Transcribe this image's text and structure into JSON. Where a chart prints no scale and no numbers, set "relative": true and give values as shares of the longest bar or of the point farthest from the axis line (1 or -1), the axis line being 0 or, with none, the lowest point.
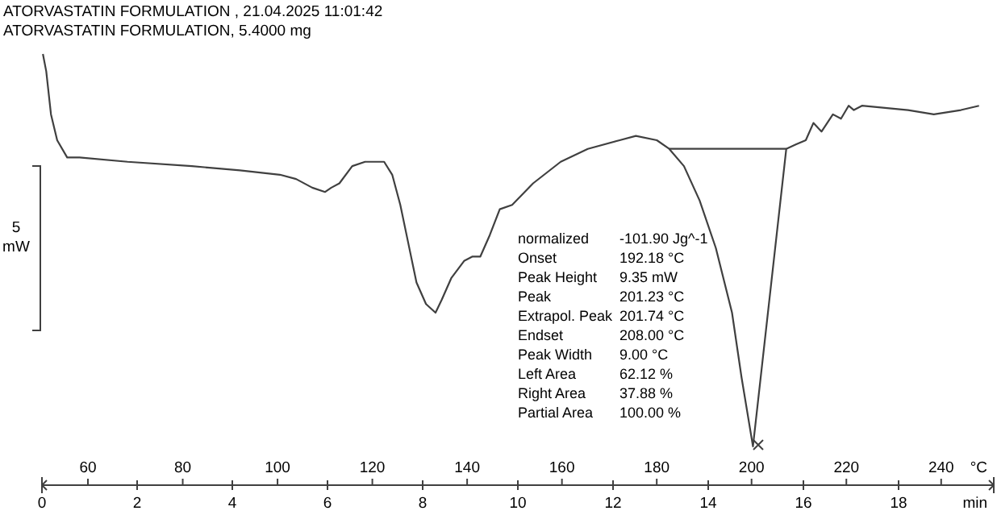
{
  "chart_data": {
    "type": "line",
    "title": "ATORVASTATIN FORMULATION , 21.04.2025 11:01:42",
    "subtitle": "ATORVASTATIN FORMULATION, 5.4000 mg",
    "ylabel": "5 mW",
    "xlabel": "min",
    "x2label": "°C",
    "relative": true,
    "grid": false,
    "marker": "none",
    "line_style": "solid",
    "xlim": [
      0,
      20
    ],
    "xticks": [
      0,
      2,
      4,
      6,
      8,
      10,
      12,
      14,
      16,
      18
    ],
    "x2lim": [
      50.3,
      251.1
    ],
    "x2ticks": [
      60,
      80,
      100,
      120,
      140,
      160,
      180,
      200,
      220,
      240
    ],
    "series": [
      {
        "color": "#404040",
        "x": [
          0.02,
          0.09,
          0.19,
          0.32,
          0.53,
          0.79,
          1.8,
          3.15,
          4.16,
          5.0,
          5.34,
          5.68,
          5.95,
          6.08,
          6.25,
          6.52,
          6.79,
          7.02,
          7.19,
          7.36,
          7.53,
          7.7,
          7.87,
          8.07,
          8.27,
          8.4,
          8.6,
          8.87,
          9.04,
          9.21,
          9.41,
          9.62,
          9.88,
          10.32,
          10.9,
          11.47,
          12.14,
          12.48,
          12.92,
          13.18,
          13.49,
          13.82,
          14.16,
          14.5,
          14.7,
          14.94,
          15.64,
          15.84,
          16.05,
          16.21,
          16.38,
          16.62,
          16.79,
          16.95,
          17.06,
          17.23,
          18.2,
          18.74,
          19.31,
          19.69
        ],
        "values": [
          1.0,
          0.96,
          0.86,
          0.8,
          0.76,
          0.76,
          0.75,
          0.74,
          0.73,
          0.72,
          0.71,
          0.69,
          0.68,
          0.69,
          0.7,
          0.74,
          0.75,
          0.75,
          0.75,
          0.72,
          0.65,
          0.56,
          0.47,
          0.42,
          0.4,
          0.43,
          0.48,
          0.52,
          0.53,
          0.53,
          0.58,
          0.64,
          0.65,
          0.7,
          0.75,
          0.78,
          0.8,
          0.81,
          0.8,
          0.78,
          0.74,
          0.66,
          0.55,
          0.4,
          0.25,
          0.09,
          0.78,
          0.79,
          0.8,
          0.84,
          0.82,
          0.86,
          0.85,
          0.88,
          0.87,
          0.88,
          0.87,
          0.86,
          0.87,
          0.88
        ]
      },
      {
        "type": "line",
        "color": "#404040",
        "x": [
          13.18,
          15.64
        ],
        "values": [
          0.78,
          0.78
        ]
      }
    ],
    "annotations": [
      "normalized\t-101.90 Jg^-1",
      "Onset\t192.18 °C",
      "Peak Height\t9.35 mW",
      "Peak\t201.23 °C",
      "Extrapol. Peak\t201.74 °C",
      "Endset\t208.00 °C",
      "Peak Width\t9.00 °C",
      "Left Area\t62.12 %",
      "Right Area\t37.88 %",
      "Partial Area\t100.00 %"
    ]
  }
}
